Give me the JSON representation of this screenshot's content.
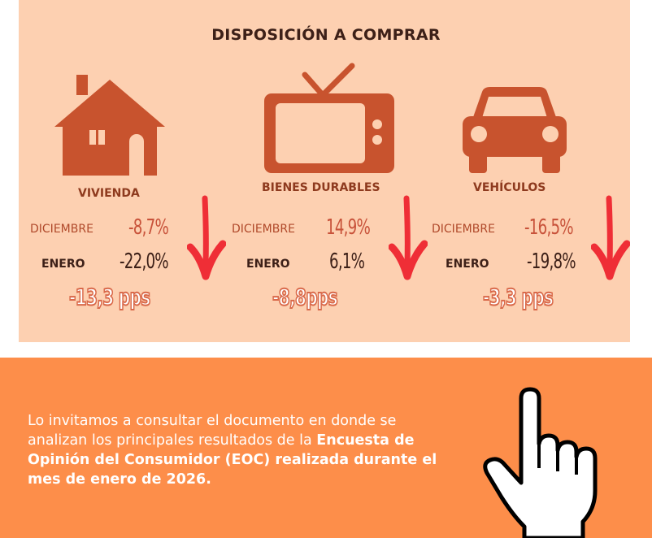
{
  "title": "DISPOSICIÓN A COMPRAR",
  "categories": [
    {
      "label": "VIVIENDA",
      "icon": "house-icon",
      "dec_label": "DICIEMBRE",
      "dec_value": "-8,7%",
      "jan_label": "ENERO",
      "jan_value": "-22,0%",
      "change": "-13,3 pps"
    },
    {
      "label": "BIENES DURABLES",
      "icon": "tv-icon",
      "dec_label": "DICIEMBRE",
      "dec_value": "14,9%",
      "jan_label": "ENERO",
      "jan_value": "6,1%",
      "change": "-8,8pps"
    },
    {
      "label": "VEHÍCULOS",
      "icon": "car-icon",
      "dec_label": "DICIEMBRE",
      "dec_value": "-16,5%",
      "jan_label": "ENERO",
      "jan_value": "-19,8%",
      "change": "-3,3 pps"
    }
  ],
  "bottom": {
    "text_plain": "Lo invitamos a consultar el documento en donde se analizan los principales resultados de la ",
    "text_bold": "Encuesta de Opinión del Consumidor (EOC) realizada durante el mes de enero de 2026.",
    "icon": "pointing-hand-icon"
  },
  "colors": {
    "panel_top": "#fdd0b1",
    "panel_bottom": "#fd8e4a",
    "icon": "#c8532e",
    "arrow": "#ef2e36"
  }
}
